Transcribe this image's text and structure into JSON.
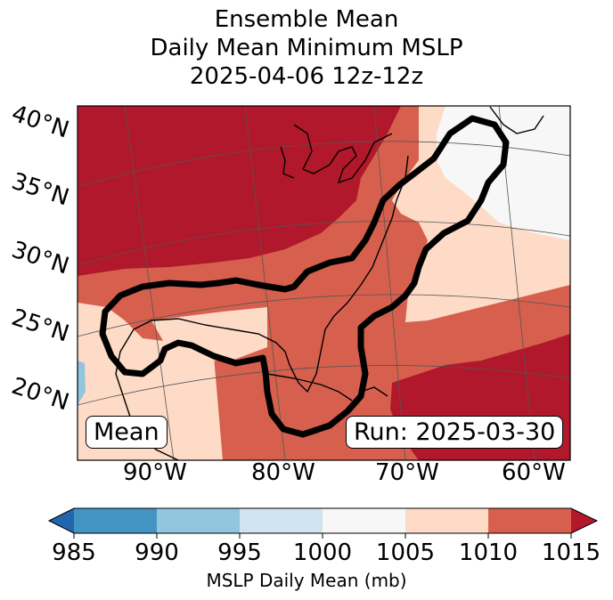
{
  "title": {
    "line1": "Ensemble Mean",
    "line2": "Daily Mean Minimum MSLP",
    "line3": "2025-04-06 12z-12z"
  },
  "lat_labels": [
    "40°N",
    "35°N",
    "30°N",
    "25°N",
    "20°N"
  ],
  "lon_labels": [
    "90°W",
    "80°W",
    "70°W",
    "60°W"
  ],
  "legend_box": "Mean",
  "run_box": "Run: 2025-03-30",
  "colorbar": {
    "ticks": [
      "985",
      "990",
      "995",
      "1000",
      "1005",
      "1010",
      "1015"
    ],
    "label": "MSLP Daily Mean (mb)",
    "colors": [
      "#2166ac",
      "#4393c3",
      "#92c5de",
      "#d1e5f0",
      "#f7f7f7",
      "#fddbc7",
      "#d6604d",
      "#b2182b"
    ]
  },
  "contour": {
    "color": "#000000"
  }
}
